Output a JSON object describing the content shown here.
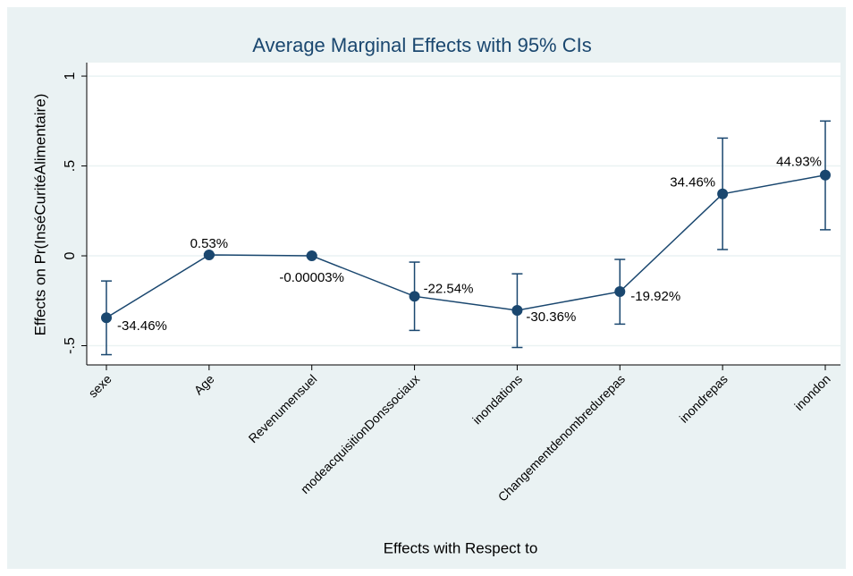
{
  "chart_data": {
    "type": "line",
    "title": "Average Marginal Effects with 95% CIs",
    "x_label": "Effects with Respect to",
    "y_label": "Effects on Pr(InséCuritéAlimentaire)",
    "categories": [
      "sexe",
      "Age",
      "Revenumensuel",
      "modeacquisitionDonssociaux",
      "inondations",
      "Changementdenombredurepas",
      "inondrepas",
      "inondon"
    ],
    "values": [
      -0.3446,
      0.0053,
      -3e-07,
      -0.2254,
      -0.3036,
      -0.1992,
      0.3446,
      0.4493
    ],
    "value_labels": [
      "-34.46%",
      "0.53%",
      "-0.00003%",
      "-22.54%",
      "-30.36%",
      "-19.92%",
      "34.46%",
      "44.93%"
    ],
    "ci_lower": [
      -0.55,
      0.0,
      -0.005,
      -0.415,
      -0.51,
      -0.38,
      0.035,
      0.145
    ],
    "ci_upper": [
      -0.14,
      0.011,
      0.005,
      -0.035,
      -0.1,
      -0.02,
      0.655,
      0.75
    ],
    "color": "#1a476f",
    "ylim": [
      -0.607,
      1.075
    ],
    "yticks": [
      {
        "value": -0.5,
        "label": "-.5"
      },
      0,
      {
        "value": 0.5,
        "label": ".5"
      },
      1
    ],
    "grid": true
  }
}
